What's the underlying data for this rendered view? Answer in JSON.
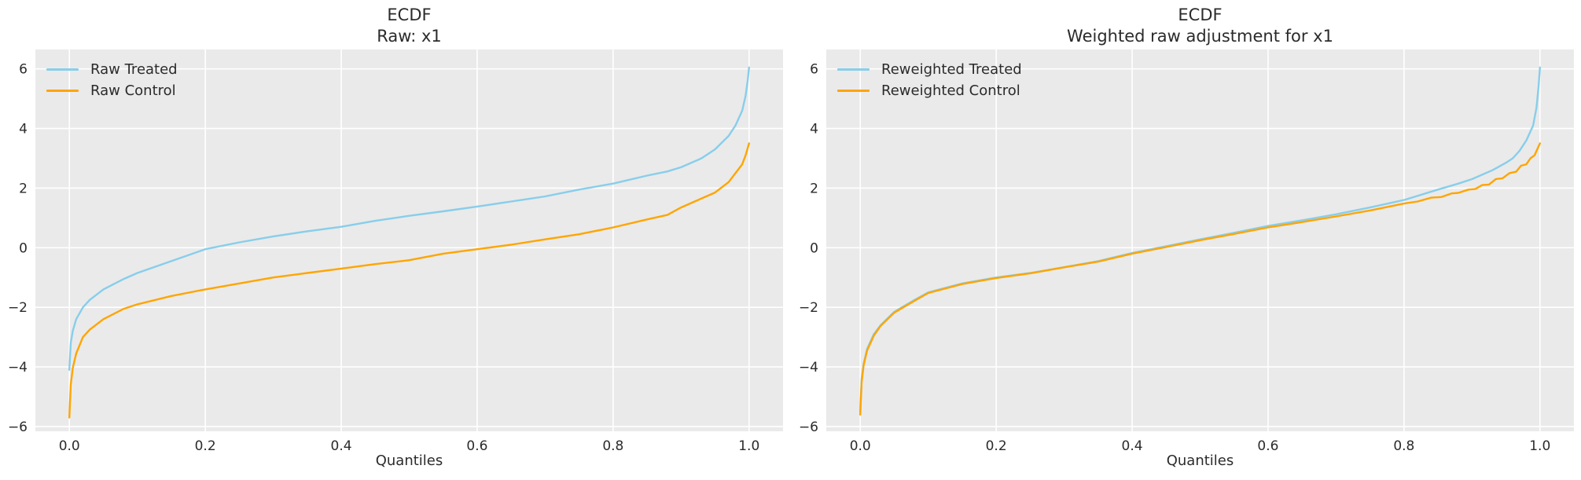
{
  "figure": {
    "background": "#ffffff",
    "text_color": "#2b2b2b"
  },
  "chart_data": [
    {
      "type": "line",
      "title": "ECDF",
      "subtitle": "Raw: x1",
      "xlabel": "Quantiles",
      "x_ticks": [
        0.0,
        0.2,
        0.4,
        0.6,
        0.8,
        1.0
      ],
      "x_tick_labels": [
        "0.0",
        "0.2",
        "0.4",
        "0.6",
        "0.8",
        "1.0"
      ],
      "y_ticks": [
        6,
        4,
        2,
        0,
        -2,
        -4,
        -6
      ],
      "y_tick_labels": [
        "6",
        "4",
        "2",
        "0",
        "−2",
        "−4",
        "−6"
      ],
      "xlim": [
        -0.05,
        1.05
      ],
      "ylim": [
        -6.16,
        6.65
      ],
      "grid": true,
      "legend_position": "upper left",
      "plot_bg": "#eaeaea",
      "grid_color": "#ffffff",
      "series": [
        {
          "name": "Raw Treated",
          "color": "#87CEEB",
          "x": [
            0,
            0.002,
            0.005,
            0.01,
            0.02,
            0.03,
            0.05,
            0.08,
            0.1,
            0.15,
            0.2,
            0.25,
            0.3,
            0.35,
            0.4,
            0.45,
            0.5,
            0.55,
            0.6,
            0.65,
            0.7,
            0.75,
            0.8,
            0.85,
            0.88,
            0.9,
            0.93,
            0.95,
            0.97,
            0.98,
            0.99,
            0.995,
            0.998,
            1.0
          ],
          "y": [
            -4.1,
            -3.2,
            -2.8,
            -2.4,
            -2.0,
            -1.75,
            -1.4,
            -1.05,
            -0.85,
            -0.45,
            -0.05,
            0.18,
            0.38,
            0.55,
            0.7,
            0.9,
            1.07,
            1.22,
            1.38,
            1.55,
            1.72,
            1.95,
            2.15,
            2.42,
            2.56,
            2.7,
            3.0,
            3.3,
            3.75,
            4.1,
            4.6,
            5.1,
            5.6,
            6.05
          ]
        },
        {
          "name": "Raw Control",
          "color": "#FFA500",
          "x": [
            0,
            0.002,
            0.005,
            0.01,
            0.02,
            0.03,
            0.05,
            0.08,
            0.1,
            0.15,
            0.2,
            0.25,
            0.3,
            0.35,
            0.4,
            0.45,
            0.5,
            0.55,
            0.6,
            0.65,
            0.7,
            0.75,
            0.8,
            0.85,
            0.88,
            0.9,
            0.92,
            0.95,
            0.97,
            0.98,
            0.99,
            0.995,
            1.0
          ],
          "y": [
            -5.7,
            -4.6,
            -4.05,
            -3.55,
            -3.0,
            -2.75,
            -2.4,
            -2.05,
            -1.9,
            -1.62,
            -1.4,
            -1.2,
            -1.0,
            -0.85,
            -0.7,
            -0.55,
            -0.42,
            -0.2,
            -0.05,
            0.1,
            0.28,
            0.45,
            0.68,
            0.95,
            1.1,
            1.35,
            1.55,
            1.85,
            2.2,
            2.5,
            2.8,
            3.1,
            3.5
          ]
        }
      ]
    },
    {
      "type": "line",
      "title": "ECDF",
      "subtitle": "Weighted raw adjustment for x1",
      "xlabel": "Quantiles",
      "x_ticks": [
        0.0,
        0.2,
        0.4,
        0.6,
        0.8,
        1.0
      ],
      "x_tick_labels": [
        "0.0",
        "0.2",
        "0.4",
        "0.6",
        "0.8",
        "1.0"
      ],
      "y_ticks": [
        6,
        4,
        2,
        0,
        -2,
        -4,
        -6
      ],
      "y_tick_labels": [
        "6",
        "4",
        "2",
        "0",
        "−2",
        "−4",
        "−6"
      ],
      "xlim": [
        -0.05,
        1.05
      ],
      "ylim": [
        -6.16,
        6.65
      ],
      "grid": true,
      "legend_position": "upper left",
      "plot_bg": "#eaeaea",
      "grid_color": "#ffffff",
      "series": [
        {
          "name": "Reweighted Treated",
          "color": "#87CEEB",
          "x": [
            0,
            0.002,
            0.005,
            0.01,
            0.02,
            0.03,
            0.05,
            0.08,
            0.1,
            0.15,
            0.2,
            0.25,
            0.3,
            0.35,
            0.4,
            0.45,
            0.5,
            0.55,
            0.6,
            0.65,
            0.7,
            0.75,
            0.8,
            0.85,
            0.88,
            0.9,
            0.93,
            0.95,
            0.96,
            0.97,
            0.98,
            0.99,
            0.995,
            0.998,
            1.0
          ],
          "y": [
            -5.5,
            -4.4,
            -3.9,
            -3.4,
            -2.9,
            -2.6,
            -2.15,
            -1.75,
            -1.5,
            -1.2,
            -1.0,
            -0.85,
            -0.65,
            -0.45,
            -0.18,
            0.05,
            0.28,
            0.5,
            0.73,
            0.92,
            1.12,
            1.35,
            1.6,
            1.95,
            2.15,
            2.3,
            2.6,
            2.85,
            3.0,
            3.25,
            3.6,
            4.1,
            4.7,
            5.4,
            6.05
          ]
        },
        {
          "name": "Reweighted Control",
          "color": "#FFA500",
          "x": [
            0,
            0.002,
            0.005,
            0.01,
            0.02,
            0.03,
            0.05,
            0.08,
            0.1,
            0.15,
            0.2,
            0.25,
            0.3,
            0.35,
            0.4,
            0.45,
            0.5,
            0.55,
            0.6,
            0.65,
            0.7,
            0.75,
            0.8,
            0.82,
            0.84,
            0.855,
            0.87,
            0.88,
            0.895,
            0.905,
            0.915,
            0.925,
            0.935,
            0.945,
            0.955,
            0.965,
            0.972,
            0.98,
            0.986,
            0.992,
            0.996,
            1.0
          ],
          "y": [
            -5.6,
            -4.5,
            -3.95,
            -3.45,
            -2.95,
            -2.62,
            -2.18,
            -1.78,
            -1.52,
            -1.22,
            -1.02,
            -0.86,
            -0.66,
            -0.47,
            -0.2,
            0.02,
            0.25,
            0.46,
            0.68,
            0.86,
            1.05,
            1.25,
            1.48,
            1.55,
            1.68,
            1.7,
            1.82,
            1.84,
            1.95,
            1.97,
            2.1,
            2.12,
            2.3,
            2.33,
            2.5,
            2.55,
            2.75,
            2.8,
            3.0,
            3.1,
            3.3,
            3.5
          ]
        }
      ]
    }
  ]
}
